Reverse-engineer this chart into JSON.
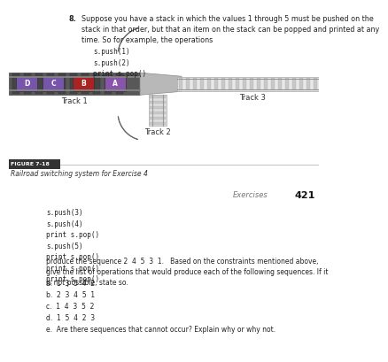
{
  "bg_top": "#ffffff",
  "bg_bottom": "#ffffff",
  "bg_separator": "#b0b0b0",
  "question_num": "8.",
  "question_text": "Suppose you have a stack in which the values 1 through 5 must be pushed on the\nstack in that order, but that an item on the stack can be popped and printed at any\ntime. So for example, the operations",
  "code1": "s.push(1)\ns.push(2)\nprint s.pop()",
  "figure_label": "FIGURE 7-18",
  "figure_caption": "Railroad switching system for Exercise 4",
  "track1_label": "Track 1",
  "track2_label": "Track 2",
  "track3_label": "Track 3",
  "header_exercises": "Exercises",
  "header_page": "421",
  "code2": "s.push(3)\ns.push(4)\nprint s.pop()\ns.push(5)\nprint s.pop()\nprint s.pop()\nprint s.pop()",
  "paragraph": "produce the sequence 2  4  5  3  1.   Based on the constraints mentioned above,\ngive the list of operations that would produce each of the following sequences. If it\nis not possible, state so.",
  "items": [
    "a.  1  3  5  4  2",
    "b.  2  3  4  5  1",
    "c.  1  4  3  5  2",
    "d.  1  5  4  2  3",
    "e.  Are there sequences that cannot occur? Explain why or why not."
  ],
  "left_track_color": "#606060",
  "left_track_tie_color": "#808080",
  "box_colors": [
    "#7755aa",
    "#7755aa",
    "#aa2222",
    "#8855aa"
  ],
  "box_labels": [
    "D",
    "C",
    "B",
    "A"
  ],
  "right_track_bg": "#e0e0e0",
  "right_track_tie_color": "#c0c0c0",
  "junction_color": "#c0c0c0",
  "bottom_track_color": "#d8d8d8"
}
